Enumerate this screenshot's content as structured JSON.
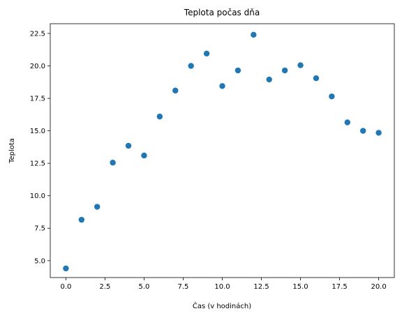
{
  "chart_data": {
    "type": "scatter",
    "title": "Teplota počas dňa",
    "xlabel": "Čas (v hodinách)",
    "ylabel": "Teplota",
    "x": [
      0,
      1,
      2,
      3,
      4,
      5,
      6,
      7,
      8,
      9,
      10,
      11,
      12,
      13,
      14,
      15,
      16,
      17,
      18,
      19,
      20
    ],
    "values": [
      4.4,
      8.15,
      9.15,
      12.55,
      13.85,
      13.1,
      16.1,
      18.1,
      20.0,
      20.95,
      18.45,
      19.65,
      22.4,
      18.95,
      19.65,
      20.05,
      19.05,
      17.65,
      15.65,
      15.0,
      14.85
    ],
    "color": "#1f77b4",
    "xlim": [
      -1.0,
      21.0
    ],
    "ylim": [
      3.7,
      23.25
    ],
    "xticks": [
      {
        "value": 0,
        "label": "0.0"
      },
      {
        "value": 2.5,
        "label": "2.5"
      },
      {
        "value": 5,
        "label": "5.0"
      },
      {
        "value": 7.5,
        "label": "7.5"
      },
      {
        "value": 10,
        "label": "10.0"
      },
      {
        "value": 12.5,
        "label": "12.5"
      },
      {
        "value": 15,
        "label": "15.0"
      },
      {
        "value": 17.5,
        "label": "17.5"
      },
      {
        "value": 20,
        "label": "20.0"
      }
    ],
    "yticks": [
      {
        "value": 5,
        "label": "5.0"
      },
      {
        "value": 7.5,
        "label": "7.5"
      },
      {
        "value": 10,
        "label": "10.0"
      },
      {
        "value": 12.5,
        "label": "12.5"
      },
      {
        "value": 15,
        "label": "15.0"
      },
      {
        "value": 17.5,
        "label": "17.5"
      },
      {
        "value": 20,
        "label": "20.0"
      },
      {
        "value": 22.5,
        "label": "22.5"
      }
    ],
    "grid": false
  }
}
